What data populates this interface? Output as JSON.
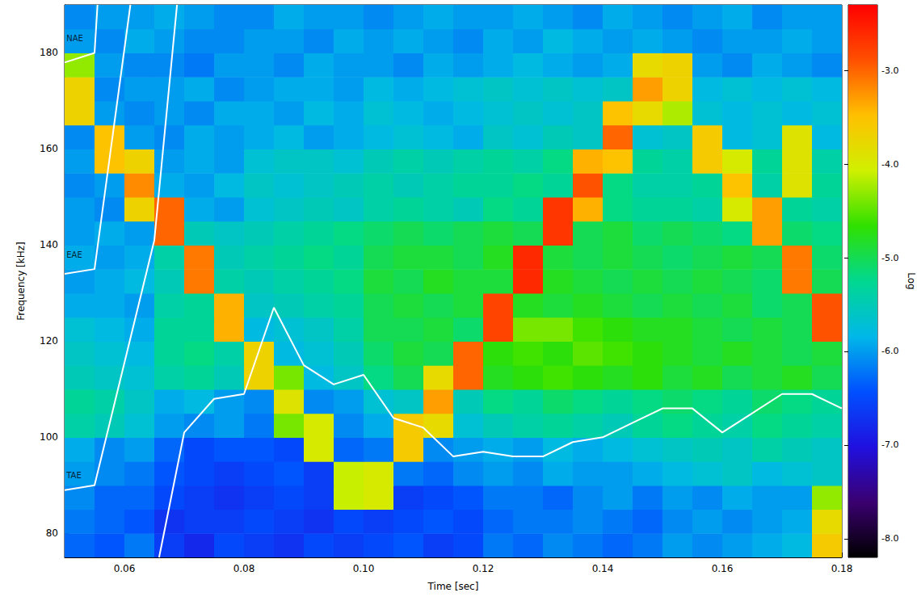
{
  "chart_data": {
    "type": "heatmap",
    "xlabel": "Time [sec]",
    "ylabel": "Frequency [kHz]",
    "xlim": [
      0.05,
      0.18
    ],
    "xticks": [
      0.06,
      0.08,
      {
        "value": 0.1,
        "label": "0.10"
      },
      0.12,
      0.14,
      0.16,
      0.18
    ],
    "ylim": [
      75,
      190
    ],
    "yticks": [
      80,
      100,
      120,
      140,
      160,
      180
    ],
    "x_edges": [
      0.05,
      0.055,
      0.06,
      0.065,
      0.07,
      0.075,
      0.08,
      0.085,
      0.09,
      0.095,
      0.1,
      0.105,
      0.11,
      0.115,
      0.12,
      0.125,
      0.13,
      0.135,
      0.14,
      0.145,
      0.15,
      0.155,
      0.16,
      0.165,
      0.17,
      0.175,
      0.18
    ],
    "y_edges": [
      75,
      80,
      85,
      90,
      95,
      100,
      105,
      110,
      115,
      120,
      125,
      130,
      135,
      140,
      145,
      150,
      155,
      160,
      165,
      170,
      175,
      180,
      185,
      190
    ],
    "cells": [
      [
        -6.3,
        -6.4,
        -6.2,
        -6.6,
        -6.8,
        -6.5,
        -6.6,
        -6.7,
        -6.5,
        -6.6,
        -6.5,
        -6.4,
        -6.6,
        -6.5,
        -6.2,
        -6.3,
        -6.1,
        -6.2,
        -6.3,
        -6.2,
        -6.0,
        -6.1,
        -6.0,
        -5.9,
        -5.8,
        -3.6
      ],
      [
        -6.2,
        -6.3,
        -6.4,
        -6.7,
        -6.6,
        -6.6,
        -6.5,
        -6.6,
        -6.7,
        -6.5,
        -6.6,
        -6.5,
        -6.4,
        -6.5,
        -6.3,
        -6.2,
        -6.2,
        -6.1,
        -6.2,
        -6.3,
        -6.1,
        -6.0,
        -6.1,
        -6.0,
        -5.9,
        -3.8
      ],
      [
        -6.1,
        -6.3,
        -6.3,
        -6.5,
        -6.6,
        -6.7,
        -6.6,
        -6.5,
        -6.6,
        -4.1,
        -4.0,
        -6.6,
        -6.5,
        -6.4,
        -6.2,
        -6.2,
        -6.3,
        -6.1,
        -6.0,
        -6.2,
        -6.0,
        -6.1,
        -5.9,
        -6.0,
        -6.0,
        -4.3
      ],
      [
        -6.0,
        -6.1,
        -6.2,
        -6.4,
        -6.5,
        -6.6,
        -6.5,
        -6.4,
        -6.6,
        -4.1,
        -4.0,
        -6.2,
        -6.3,
        -6.1,
        -6.0,
        -6.1,
        -5.9,
        -6.0,
        -6.0,
        -5.9,
        -5.8,
        -5.7,
        -5.6,
        -5.8,
        -5.7,
        -5.6
      ],
      [
        -5.9,
        -6.1,
        -6.0,
        -6.3,
        -6.5,
        -6.4,
        -6.4,
        -6.5,
        -4.0,
        -6.3,
        -6.2,
        -3.6,
        -6.1,
        -6.0,
        -5.9,
        -6.0,
        -5.8,
        -5.9,
        -5.8,
        -5.7,
        -5.6,
        -5.5,
        -5.6,
        -5.4,
        -5.5,
        -5.6
      ],
      [
        -5.4,
        -5.5,
        -5.7,
        -6.0,
        -6.1,
        -6.0,
        -6.2,
        -4.4,
        -4.0,
        -6.1,
        -5.9,
        -3.6,
        -3.8,
        -5.7,
        -5.5,
        -5.4,
        -5.3,
        -5.4,
        -5.5,
        -5.3,
        -5.2,
        -5.3,
        -5.4,
        -5.2,
        -5.3,
        -5.4
      ],
      [
        -5.3,
        -5.4,
        -5.6,
        -5.9,
        -5.8,
        -6.0,
        -6.1,
        -3.9,
        -6.1,
        -6.0,
        -5.7,
        -5.6,
        -3.3,
        -5.5,
        -5.2,
        -5.3,
        -5.1,
        -5.2,
        -5.3,
        -5.2,
        -5.1,
        -5.2,
        -5.3,
        -5.1,
        -5.2,
        -5.3
      ],
      [
        -5.5,
        -5.6,
        -5.7,
        -5.4,
        -5.3,
        -5.5,
        -3.7,
        -4.4,
        -5.8,
        -5.6,
        -5.2,
        -5.0,
        -3.8,
        -3.0,
        -4.8,
        -4.7,
        -4.6,
        -4.7,
        -4.8,
        -4.7,
        -4.9,
        -4.8,
        -5.0,
        -4.9,
        -4.8,
        -5.0
      ],
      [
        -5.6,
        -5.7,
        -5.8,
        -5.3,
        -5.2,
        -5.4,
        -3.7,
        -5.8,
        -5.7,
        -5.5,
        -5.1,
        -4.9,
        -5.0,
        -3.0,
        -4.7,
        -4.6,
        -4.7,
        -4.5,
        -4.6,
        -4.7,
        -4.8,
        -4.9,
        -4.8,
        -4.9,
        -5.0,
        -4.9
      ],
      [
        -5.7,
        -5.8,
        -5.9,
        -5.3,
        -5.3,
        -3.4,
        -5.8,
        -5.7,
        -5.6,
        -5.4,
        -5.0,
        -5.0,
        -4.9,
        -5.1,
        -2.8,
        -4.4,
        -4.4,
        -4.6,
        -4.7,
        -4.8,
        -4.8,
        -4.9,
        -5.0,
        -4.9,
        -5.0,
        -2.9
      ],
      [
        -5.9,
        -5.9,
        -6.0,
        -5.4,
        -5.3,
        -3.4,
        -5.6,
        -5.5,
        -5.4,
        -5.3,
        -5.0,
        -4.9,
        -5.0,
        -4.9,
        -2.8,
        -4.8,
        -4.9,
        -4.8,
        -4.9,
        -5.0,
        -4.9,
        -5.0,
        -4.9,
        -5.1,
        -5.0,
        -2.9
      ],
      [
        -6.0,
        -5.9,
        -5.8,
        -5.5,
        -3.1,
        -5.4,
        -5.5,
        -5.4,
        -5.3,
        -5.2,
        -4.9,
        -5.0,
        -4.8,
        -4.9,
        -4.9,
        -2.6,
        -4.8,
        -4.9,
        -5.0,
        -4.9,
        -5.0,
        -4.9,
        -5.0,
        -5.1,
        -3.1,
        -5.0
      ],
      [
        -5.9,
        -6.0,
        -5.9,
        -5.4,
        -3.1,
        -5.5,
        -5.4,
        -5.3,
        -5.2,
        -5.3,
        -5.0,
        -4.9,
        -4.9,
        -5.0,
        -4.8,
        -2.6,
        -4.9,
        -5.0,
        -4.9,
        -5.0,
        -5.1,
        -5.0,
        -4.9,
        -5.0,
        -3.1,
        -5.1
      ],
      [
        -6.0,
        -5.9,
        -6.0,
        -3.0,
        -5.5,
        -5.6,
        -5.5,
        -5.4,
        -5.3,
        -5.2,
        -5.1,
        -5.0,
        -5.1,
        -5.0,
        -4.9,
        -5.0,
        -2.7,
        -5.0,
        -4.9,
        -5.1,
        -5.0,
        -5.1,
        -5.2,
        -3.3,
        -5.1,
        -5.2
      ],
      [
        -6.0,
        -6.1,
        -3.7,
        -3.0,
        -5.9,
        -6.0,
        -5.7,
        -5.6,
        -5.5,
        -5.6,
        -5.4,
        -5.3,
        -5.4,
        -5.5,
        -5.2,
        -5.3,
        -2.7,
        -3.4,
        -5.2,
        -5.3,
        -5.3,
        -5.4,
        -4.0,
        -3.3,
        -5.3,
        -5.4
      ],
      [
        -6.1,
        -6.0,
        -3.2,
        -5.9,
        -6.0,
        -5.8,
        -5.6,
        -5.7,
        -5.6,
        -5.5,
        -5.4,
        -5.5,
        -5.4,
        -5.3,
        -5.3,
        -5.2,
        -5.3,
        -2.9,
        -5.2,
        -5.4,
        -5.4,
        -5.3,
        -3.5,
        -5.4,
        -3.9,
        -5.3
      ],
      [
        -6.0,
        -3.5,
        -3.7,
        -6.0,
        -5.9,
        -6.0,
        -5.7,
        -5.6,
        -5.6,
        -5.7,
        -5.5,
        -5.4,
        -5.5,
        -5.4,
        -5.3,
        -5.4,
        -5.2,
        -3.4,
        -3.5,
        -5.3,
        -5.4,
        -3.6,
        -4.0,
        -5.3,
        -3.9,
        -5.4
      ],
      [
        -6.1,
        -3.5,
        -6.0,
        -6.1,
        -5.9,
        -6.0,
        -5.9,
        -5.8,
        -6.0,
        -5.9,
        -5.8,
        -5.7,
        -5.8,
        -5.9,
        -5.6,
        -5.7,
        -5.5,
        -5.6,
        -3.0,
        -5.7,
        -5.6,
        -3.6,
        -5.8,
        -5.7,
        -3.9,
        -5.8
      ],
      [
        -3.7,
        -6.0,
        -6.1,
        -6.0,
        -6.1,
        -5.9,
        -5.9,
        -6.0,
        -5.8,
        -5.9,
        -5.7,
        -5.8,
        -5.9,
        -5.8,
        -5.7,
        -5.6,
        -5.7,
        -5.6,
        -3.5,
        -3.8,
        -4.2,
        -5.7,
        -5.8,
        -5.7,
        -5.8,
        -5.7
      ],
      [
        -3.7,
        -6.1,
        -6.0,
        -6.0,
        -5.9,
        -6.1,
        -6.0,
        -5.9,
        -5.9,
        -6.0,
        -5.8,
        -5.9,
        -5.8,
        -5.7,
        -5.6,
        -5.7,
        -5.6,
        -5.7,
        -5.6,
        -3.3,
        -3.7,
        -5.8,
        -5.7,
        -5.8,
        -5.7,
        -5.8
      ],
      [
        -4.3,
        -6.0,
        -6.1,
        -6.1,
        -6.2,
        -6.0,
        -6.0,
        -6.1,
        -5.9,
        -6.0,
        -6.0,
        -6.1,
        -5.9,
        -6.0,
        -5.9,
        -5.8,
        -5.9,
        -6.0,
        -5.9,
        -3.8,
        -3.7,
        -6.0,
        -6.1,
        -5.9,
        -6.0,
        -6.1
      ],
      [
        -6.0,
        -6.1,
        -5.9,
        -6.0,
        -6.1,
        -6.1,
        -6.0,
        -6.0,
        -6.1,
        -5.9,
        -6.0,
        -5.9,
        -6.0,
        -6.1,
        -5.9,
        -6.0,
        -5.8,
        -5.9,
        -6.0,
        -5.9,
        -6.0,
        -6.1,
        -6.0,
        -6.0,
        -5.9,
        -6.0
      ],
      [
        -6.1,
        -6.0,
        -6.0,
        -5.9,
        -6.0,
        -6.1,
        -6.1,
        -5.9,
        -6.0,
        -6.0,
        -6.1,
        -6.0,
        -5.9,
        -6.0,
        -6.0,
        -5.9,
        -6.0,
        -6.1,
        -5.9,
        -6.0,
        -6.1,
        -6.0,
        -5.9,
        -6.1,
        -6.0,
        -6.0
      ]
    ],
    "colorbar": {
      "label": "Log",
      "range": [
        -8.2,
        -2.3
      ],
      "ticks": [
        {
          "value": -8,
          "label": "-8.0"
        },
        {
          "value": -7,
          "label": "-7.0"
        },
        {
          "value": -6,
          "label": "-6.0"
        },
        {
          "value": -5,
          "label": "-5.0"
        },
        {
          "value": -4,
          "label": "-4.0"
        },
        {
          "value": -3,
          "label": "-3.0"
        }
      ]
    },
    "lines": [
      {
        "color": "#ffffff",
        "points": [
          [
            0.05,
            178
          ],
          [
            0.055,
            180
          ],
          [
            0.0555,
            190
          ]
        ]
      },
      {
        "color": "#ffffff",
        "points": [
          [
            0.05,
            134
          ],
          [
            0.055,
            135
          ],
          [
            0.061,
            190
          ]
        ]
      },
      {
        "color": "#ffffff",
        "points": [
          [
            0.05,
            89
          ],
          [
            0.055,
            90
          ],
          [
            0.065,
            141
          ],
          [
            0.0688,
            190
          ]
        ]
      },
      {
        "color": "#ffffff",
        "points": [
          [
            0.0658,
            75
          ],
          [
            0.07,
            101
          ],
          [
            0.075,
            108
          ],
          [
            0.08,
            109
          ],
          [
            0.085,
            127
          ],
          [
            0.09,
            115
          ],
          [
            0.095,
            111
          ],
          [
            0.1,
            113
          ],
          [
            0.105,
            104
          ],
          [
            0.11,
            102
          ],
          [
            0.115,
            96
          ],
          [
            0.12,
            97
          ],
          [
            0.125,
            96
          ],
          [
            0.13,
            96
          ],
          [
            0.135,
            99
          ],
          [
            0.14,
            100
          ],
          [
            0.145,
            103
          ],
          [
            0.15,
            106
          ],
          [
            0.155,
            106
          ],
          [
            0.16,
            101
          ],
          [
            0.165,
            105
          ],
          [
            0.17,
            109
          ],
          [
            0.175,
            109
          ],
          [
            0.18,
            106
          ]
        ]
      }
    ],
    "annotations": [
      {
        "text": "NAE",
        "x": 0.0503,
        "y": 183
      },
      {
        "text": "EAE",
        "x": 0.0503,
        "y": 138
      },
      {
        "text": "TAE",
        "x": 0.0503,
        "y": 92
      }
    ]
  }
}
